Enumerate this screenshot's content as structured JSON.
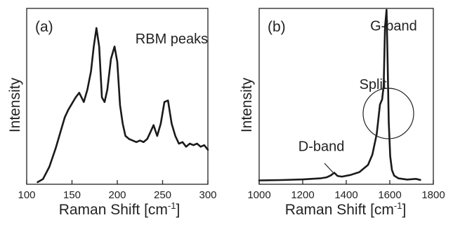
{
  "chart_data": [
    {
      "type": "line",
      "panel_label": "(a)",
      "xlabel": "Raman Shift [cm",
      "xlabel_sup": "-1",
      "xlabel_end": "]",
      "ylabel": "Intensity",
      "xlim": [
        100,
        300
      ],
      "ylim": [
        0,
        100
      ],
      "xticks": [
        100,
        150,
        200,
        250,
        300
      ],
      "annotations": [
        {
          "text": "RBM peaks",
          "x": 220,
          "y": 90
        }
      ],
      "series": [
        {
          "x": [
            112,
            118,
            125,
            132,
            138,
            142,
            146,
            150,
            154,
            158,
            163,
            167,
            171,
            174,
            177,
            180,
            183,
            186,
            189,
            193,
            197,
            200,
            203,
            206,
            209,
            213,
            217,
            221,
            225,
            229,
            233,
            237,
            240,
            244,
            248,
            252,
            256,
            260,
            264,
            268,
            272,
            276,
            280,
            284,
            288,
            292,
            296,
            300
          ],
          "y": [
            0,
            2,
            10,
            22,
            34,
            42,
            47,
            51,
            55,
            58,
            52,
            60,
            72,
            88,
            100,
            88,
            55,
            52,
            60,
            80,
            88,
            78,
            50,
            38,
            30,
            28,
            27,
            26,
            27,
            26,
            28,
            33,
            37,
            30,
            38,
            52,
            53,
            38,
            30,
            25,
            26,
            23,
            25,
            24,
            25,
            23,
            24,
            21
          ]
        }
      ]
    },
    {
      "type": "line",
      "panel_label": "(b)",
      "xlabel": "Raman Shift [cm",
      "xlabel_sup": "-1",
      "xlabel_end": "]",
      "ylabel": "Intensity",
      "xlim": [
        1000,
        1800
      ],
      "ylim": [
        0,
        100
      ],
      "xticks": [
        1000,
        1200,
        1400,
        1600,
        1800
      ],
      "annotations": [
        {
          "text": "G-band",
          "x": 1510,
          "y": 88
        },
        {
          "text": "Split",
          "x": 1460,
          "y": 54
        },
        {
          "text": "D-band",
          "x": 1180,
          "y": 18
        }
      ],
      "series": [
        {
          "x": [
            1000,
            1100,
            1200,
            1280,
            1310,
            1330,
            1345,
            1360,
            1380,
            1420,
            1460,
            1500,
            1520,
            1540,
            1555,
            1565,
            1572,
            1578,
            1585,
            1590,
            1595,
            1602,
            1610,
            1620,
            1640,
            1680,
            1720,
            1740
          ],
          "y": [
            1,
            1.2,
            1.6,
            2.2,
            2.8,
            4,
            5.5,
            3.6,
            3.2,
            4.2,
            5.8,
            10,
            16,
            28,
            45,
            48,
            56,
            90,
            100,
            70,
            35,
            15,
            7,
            3.8,
            2.2,
            1.5,
            1.9,
            1.3
          ]
        }
      ]
    }
  ]
}
